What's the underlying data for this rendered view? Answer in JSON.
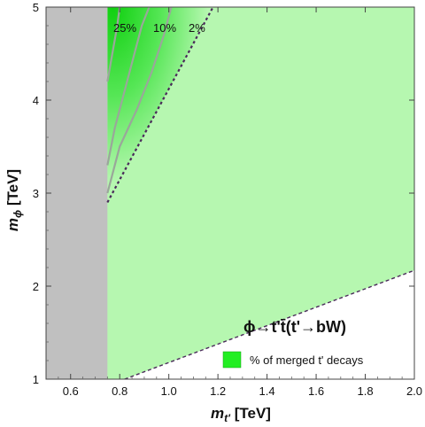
{
  "chart_data": {
    "type": "heatmap",
    "title": "",
    "xlabel": {
      "base": "m",
      "sub": "t'",
      "unit": "[TeV]"
    },
    "ylabel": {
      "base": "m",
      "sub": "ϕ",
      "unit": "[TeV]"
    },
    "xlim": [
      0.5,
      2.0
    ],
    "ylim": [
      1.0,
      5.0
    ],
    "x_ticks": [
      "0.6",
      "0.8",
      "1.0",
      "1.2",
      "1.4",
      "1.6",
      "1.8",
      "2.0"
    ],
    "y_ticks": [
      "1",
      "2",
      "3",
      "4",
      "5"
    ],
    "excluded_region": {
      "x_max": 0.75,
      "color": "#c0c0c0"
    },
    "boundary_lines": [
      {
        "name": "upper",
        "points": [
          [
            0.75,
            2.9
          ],
          [
            1.18,
            5.0
          ]
        ],
        "style": "dotted",
        "color": "#4a2a5a"
      },
      {
        "name": "lower",
        "points": [
          [
            0.82,
            1.0
          ],
          [
            2.0,
            2.17
          ]
        ],
        "style": "dashed",
        "color": "#4a2a5a"
      }
    ],
    "contours": [
      {
        "label": "25%",
        "points": [
          [
            0.75,
            4.2
          ],
          [
            0.77,
            4.5
          ],
          [
            0.79,
            4.8
          ],
          [
            0.8,
            5.0
          ]
        ]
      },
      {
        "label": "10%",
        "points": [
          [
            0.75,
            3.3
          ],
          [
            0.78,
            3.7
          ],
          [
            0.82,
            4.1
          ],
          [
            0.86,
            4.5
          ],
          [
            0.89,
            4.8
          ],
          [
            0.92,
            5.0
          ]
        ]
      },
      {
        "label": "2%",
        "points": [
          [
            0.75,
            3.0
          ],
          [
            0.8,
            3.5
          ],
          [
            0.87,
            3.9
          ],
          [
            0.93,
            4.3
          ],
          [
            0.98,
            4.7
          ],
          [
            1.01,
            5.0
          ]
        ]
      }
    ],
    "annotation": "ϕ→t't̄(t'→bW)",
    "legend": {
      "label": "% of merged t' decays",
      "color": "#22ee22",
      "placement": "bottom-right"
    },
    "colors": {
      "light_region": "#b6f7b0",
      "dark_region": "#22dd22"
    }
  }
}
